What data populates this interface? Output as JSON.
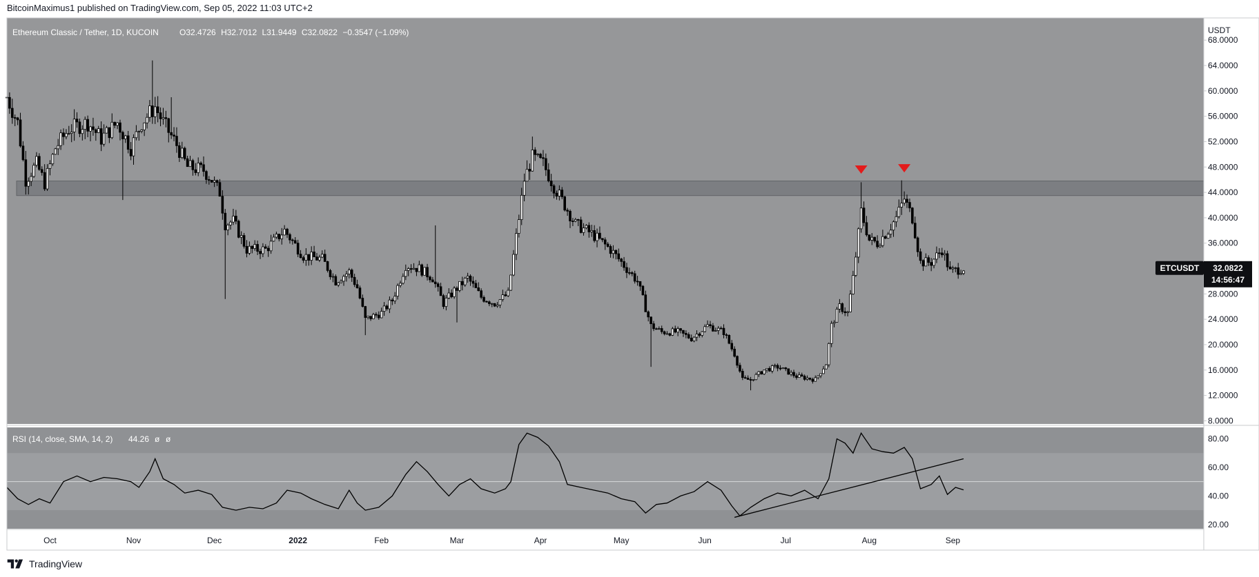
{
  "header": {
    "published": "BitcoinMaximus1 published on TradingView.com, Sep 05, 2022 11:03 UTC+2"
  },
  "main": {
    "legend": {
      "symbol": "Ethereum Classic / Tether, 1D, KUCOIN",
      "o_label": "O",
      "o": "32.4726",
      "h_label": "H",
      "h": "32.7012",
      "l_label": "L",
      "l": "31.9449",
      "c_label": "C",
      "c": "32.0822",
      "change": "−0.3547 (−1.09%)"
    },
    "currency_label": "USDT",
    "price_tag": {
      "symbol": "ETCUSDT",
      "price": "32.0822",
      "countdown": "14:56:47"
    }
  },
  "rsi": {
    "legend": "RSI (14, close, SMA, 14, 2)",
    "value": "44.26",
    "na1": "ø",
    "na2": "ø"
  },
  "footer": {
    "brand": "TradingView"
  },
  "colors": {
    "chart_bg": "#969799",
    "rsi_bg": "#8f9194",
    "rsi_band": "#9c9ea1",
    "resistance_zone": "#7a7c80",
    "candle": "#000000",
    "marker": "#e31b1b",
    "price_tag_bg": "#0e0f12"
  },
  "chart_data": [
    {
      "type": "candlestick",
      "title": "Ethereum Classic / Tether, 1D, KUCOIN",
      "ylabel": "USDT",
      "ylim": [
        7.5,
        71.5
      ],
      "y_ticks": [
        "68.0000",
        "64.0000",
        "60.0000",
        "56.0000",
        "52.0000",
        "48.0000",
        "44.0000",
        "40.0000",
        "36.0000",
        "32.0000",
        "28.0000",
        "24.0000",
        "20.0000",
        "16.0000",
        "12.0000",
        "8.0000"
      ],
      "x_ticks": [
        "Oct",
        "Nov",
        "Dec",
        "2022",
        "Feb",
        "Mar",
        "Apr",
        "May",
        "Jun",
        "Jul",
        "Aug",
        "Sep"
      ],
      "x_start_date": "2021-09-15",
      "x_end_date": "2022-09-05",
      "resistance_zone": [
        43.5,
        45.8
      ],
      "bearish_markers": [
        {
          "date": "2022-07-29",
          "price": 47.6
        },
        {
          "date": "2022-08-14",
          "price": 47.8
        }
      ],
      "close_path": [
        {
          "date": "2021-09-15",
          "price": 59.0
        },
        {
          "date": "2021-09-19",
          "price": 55.0
        },
        {
          "date": "2021-09-22",
          "price": 46.0
        },
        {
          "date": "2021-09-26",
          "price": 48.5
        },
        {
          "date": "2021-09-29",
          "price": 45.5
        },
        {
          "date": "2021-10-03",
          "price": 51.0
        },
        {
          "date": "2021-10-08",
          "price": 54.0
        },
        {
          "date": "2021-10-15",
          "price": 55.0
        },
        {
          "date": "2021-10-20",
          "price": 52.5
        },
        {
          "date": "2021-10-26",
          "price": 55.0
        },
        {
          "date": "2021-10-31",
          "price": 51.0
        },
        {
          "date": "2021-11-04",
          "price": 55.0
        },
        {
          "date": "2021-11-09",
          "price": 57.5
        },
        {
          "date": "2021-11-12",
          "price": 55.0
        },
        {
          "date": "2021-11-17",
          "price": 51.5
        },
        {
          "date": "2021-11-21",
          "price": 48.0
        },
        {
          "date": "2021-11-27",
          "price": 47.5
        },
        {
          "date": "2021-11-30",
          "price": 46.0
        },
        {
          "date": "2021-12-03",
          "price": 44.0
        },
        {
          "date": "2021-12-05",
          "price": 39.0
        },
        {
          "date": "2021-12-08",
          "price": 39.5
        },
        {
          "date": "2021-12-13",
          "price": 35.0
        },
        {
          "date": "2021-12-20",
          "price": 35.0
        },
        {
          "date": "2021-12-27",
          "price": 38.0
        },
        {
          "date": "2022-01-03",
          "price": 34.0
        },
        {
          "date": "2022-01-10",
          "price": 33.5
        },
        {
          "date": "2022-01-15",
          "price": 30.0
        },
        {
          "date": "2022-01-20",
          "price": 31.5
        },
        {
          "date": "2022-01-23",
          "price": 29.0
        },
        {
          "date": "2022-01-26",
          "price": 24.0
        },
        {
          "date": "2022-02-01",
          "price": 25.0
        },
        {
          "date": "2022-02-05",
          "price": 27.0
        },
        {
          "date": "2022-02-10",
          "price": 32.5
        },
        {
          "date": "2022-02-15",
          "price": 32.0
        },
        {
          "date": "2022-02-20",
          "price": 30.5
        },
        {
          "date": "2022-02-24",
          "price": 26.5
        },
        {
          "date": "2022-02-28",
          "price": 28.5
        },
        {
          "date": "2022-03-05",
          "price": 30.5
        },
        {
          "date": "2022-03-10",
          "price": 27.5
        },
        {
          "date": "2022-03-15",
          "price": 26.5
        },
        {
          "date": "2022-03-20",
          "price": 28.0
        },
        {
          "date": "2022-03-23",
          "price": 37.0
        },
        {
          "date": "2022-03-26",
          "price": 46.0
        },
        {
          "date": "2022-03-29",
          "price": 49.5
        },
        {
          "date": "2022-04-02",
          "price": 48.5
        },
        {
          "date": "2022-04-06",
          "price": 45.0
        },
        {
          "date": "2022-04-10",
          "price": 42.0
        },
        {
          "date": "2022-04-14",
          "price": 39.0
        },
        {
          "date": "2022-04-20",
          "price": 37.5
        },
        {
          "date": "2022-04-27",
          "price": 35.0
        },
        {
          "date": "2022-05-02",
          "price": 32.5
        },
        {
          "date": "2022-05-07",
          "price": 30.0
        },
        {
          "date": "2022-05-12",
          "price": 23.0
        },
        {
          "date": "2022-05-16",
          "price": 22.0
        },
        {
          "date": "2022-05-22",
          "price": 22.0
        },
        {
          "date": "2022-05-27",
          "price": 21.0
        },
        {
          "date": "2022-06-02",
          "price": 23.0
        },
        {
          "date": "2022-06-08",
          "price": 22.0
        },
        {
          "date": "2022-06-12",
          "price": 18.5
        },
        {
          "date": "2022-06-15",
          "price": 14.5
        },
        {
          "date": "2022-06-18",
          "price": 14.5
        },
        {
          "date": "2022-06-23",
          "price": 16.0
        },
        {
          "date": "2022-06-28",
          "price": 16.5
        },
        {
          "date": "2022-07-05",
          "price": 15.0
        },
        {
          "date": "2022-07-12",
          "price": 14.5
        },
        {
          "date": "2022-07-16",
          "price": 17.0
        },
        {
          "date": "2022-07-18",
          "price": 23.0
        },
        {
          "date": "2022-07-21",
          "price": 26.0
        },
        {
          "date": "2022-07-24",
          "price": 25.0
        },
        {
          "date": "2022-07-26",
          "price": 30.5
        },
        {
          "date": "2022-07-29",
          "price": 41.0
        },
        {
          "date": "2022-08-01",
          "price": 36.5
        },
        {
          "date": "2022-08-04",
          "price": 36.0
        },
        {
          "date": "2022-08-08",
          "price": 38.0
        },
        {
          "date": "2022-08-11",
          "price": 40.0
        },
        {
          "date": "2022-08-14",
          "price": 43.0
        },
        {
          "date": "2022-08-17",
          "price": 40.0
        },
        {
          "date": "2022-08-20",
          "price": 33.0
        },
        {
          "date": "2022-08-24",
          "price": 33.0
        },
        {
          "date": "2022-08-28",
          "price": 35.0
        },
        {
          "date": "2022-08-31",
          "price": 31.5
        },
        {
          "date": "2022-09-05",
          "price": 32.08
        }
      ],
      "wicks": [
        {
          "date": "2021-11-08",
          "high": 64.8
        },
        {
          "date": "2021-11-15",
          "high": 59.0
        },
        {
          "date": "2021-10-28",
          "low": 42.8
        },
        {
          "date": "2021-12-05",
          "low": 27.2
        },
        {
          "date": "2022-01-26",
          "low": 21.5
        },
        {
          "date": "2022-02-21",
          "high": 38.8
        },
        {
          "date": "2022-03-01",
          "low": 23.5
        },
        {
          "date": "2022-03-29",
          "high": 52.8
        },
        {
          "date": "2022-05-12",
          "low": 16.5
        },
        {
          "date": "2022-06-18",
          "low": 12.8
        },
        {
          "date": "2022-07-29",
          "high": 45.6
        },
        {
          "date": "2022-08-13",
          "high": 45.9
        }
      ]
    },
    {
      "type": "line",
      "title": "RSI (14, close, SMA, 14, 2)",
      "ylim": [
        17,
        88
      ],
      "y_ticks": [
        "80.00",
        "60.00",
        "40.00",
        "20.00"
      ],
      "band": [
        30,
        70
      ],
      "midline": 50,
      "last_value": 44.26,
      "points": [
        {
          "date": "2021-09-15",
          "value": 46
        },
        {
          "date": "2021-09-19",
          "value": 38
        },
        {
          "date": "2021-09-23",
          "value": 34
        },
        {
          "date": "2021-09-27",
          "value": 38
        },
        {
          "date": "2021-10-01",
          "value": 35
        },
        {
          "date": "2021-10-06",
          "value": 50
        },
        {
          "date": "2021-10-11",
          "value": 54
        },
        {
          "date": "2021-10-16",
          "value": 50
        },
        {
          "date": "2021-10-21",
          "value": 53
        },
        {
          "date": "2021-10-26",
          "value": 52
        },
        {
          "date": "2021-10-31",
          "value": 50
        },
        {
          "date": "2021-11-03",
          "value": 46
        },
        {
          "date": "2021-11-07",
          "value": 57
        },
        {
          "date": "2021-11-09",
          "value": 66
        },
        {
          "date": "2021-11-12",
          "value": 52
        },
        {
          "date": "2021-11-16",
          "value": 48
        },
        {
          "date": "2021-11-20",
          "value": 42
        },
        {
          "date": "2021-11-25",
          "value": 44
        },
        {
          "date": "2021-11-30",
          "value": 41
        },
        {
          "date": "2021-12-04",
          "value": 32
        },
        {
          "date": "2021-12-09",
          "value": 30
        },
        {
          "date": "2021-12-14",
          "value": 32
        },
        {
          "date": "2021-12-19",
          "value": 31
        },
        {
          "date": "2021-12-24",
          "value": 35
        },
        {
          "date": "2021-12-28",
          "value": 44
        },
        {
          "date": "2022-01-02",
          "value": 42
        },
        {
          "date": "2022-01-06",
          "value": 38
        },
        {
          "date": "2022-01-11",
          "value": 34
        },
        {
          "date": "2022-01-16",
          "value": 31
        },
        {
          "date": "2022-01-20",
          "value": 44
        },
        {
          "date": "2022-01-23",
          "value": 35
        },
        {
          "date": "2022-01-26",
          "value": 30
        },
        {
          "date": "2022-01-31",
          "value": 32
        },
        {
          "date": "2022-02-05",
          "value": 40
        },
        {
          "date": "2022-02-10",
          "value": 55
        },
        {
          "date": "2022-02-14",
          "value": 64
        },
        {
          "date": "2022-02-18",
          "value": 57
        },
        {
          "date": "2022-02-22",
          "value": 48
        },
        {
          "date": "2022-02-26",
          "value": 40
        },
        {
          "date": "2022-03-02",
          "value": 48
        },
        {
          "date": "2022-03-06",
          "value": 52
        },
        {
          "date": "2022-03-10",
          "value": 45
        },
        {
          "date": "2022-03-15",
          "value": 42
        },
        {
          "date": "2022-03-19",
          "value": 45
        },
        {
          "date": "2022-03-21",
          "value": 50
        },
        {
          "date": "2022-03-24",
          "value": 76
        },
        {
          "date": "2022-03-27",
          "value": 84
        },
        {
          "date": "2022-03-31",
          "value": 81
        },
        {
          "date": "2022-04-04",
          "value": 75
        },
        {
          "date": "2022-04-08",
          "value": 64
        },
        {
          "date": "2022-04-11",
          "value": 48
        },
        {
          "date": "2022-04-16",
          "value": 46
        },
        {
          "date": "2022-04-21",
          "value": 44
        },
        {
          "date": "2022-04-26",
          "value": 42
        },
        {
          "date": "2022-05-01",
          "value": 38
        },
        {
          "date": "2022-05-06",
          "value": 36
        },
        {
          "date": "2022-05-10",
          "value": 28
        },
        {
          "date": "2022-05-14",
          "value": 34
        },
        {
          "date": "2022-05-18",
          "value": 35
        },
        {
          "date": "2022-05-23",
          "value": 40
        },
        {
          "date": "2022-05-28",
          "value": 43
        },
        {
          "date": "2022-06-02",
          "value": 50
        },
        {
          "date": "2022-06-07",
          "value": 44
        },
        {
          "date": "2022-06-11",
          "value": 33
        },
        {
          "date": "2022-06-14",
          "value": 26
        },
        {
          "date": "2022-06-18",
          "value": 32
        },
        {
          "date": "2022-06-23",
          "value": 38
        },
        {
          "date": "2022-06-28",
          "value": 42
        },
        {
          "date": "2022-07-03",
          "value": 40
        },
        {
          "date": "2022-07-08",
          "value": 44
        },
        {
          "date": "2022-07-13",
          "value": 38
        },
        {
          "date": "2022-07-17",
          "value": 52
        },
        {
          "date": "2022-07-20",
          "value": 80
        },
        {
          "date": "2022-07-23",
          "value": 77
        },
        {
          "date": "2022-07-26",
          "value": 70
        },
        {
          "date": "2022-07-29",
          "value": 84
        },
        {
          "date": "2022-08-02",
          "value": 73
        },
        {
          "date": "2022-08-06",
          "value": 71
        },
        {
          "date": "2022-08-10",
          "value": 70
        },
        {
          "date": "2022-08-14",
          "value": 74
        },
        {
          "date": "2022-08-17",
          "value": 66
        },
        {
          "date": "2022-08-20",
          "value": 45
        },
        {
          "date": "2022-08-24",
          "value": 48
        },
        {
          "date": "2022-08-27",
          "value": 54
        },
        {
          "date": "2022-08-30",
          "value": 41
        },
        {
          "date": "2022-09-02",
          "value": 46
        },
        {
          "date": "2022-09-05",
          "value": 44.26
        }
      ],
      "trendline": [
        {
          "date": "2022-06-12",
          "value": 25
        },
        {
          "date": "2022-09-05",
          "value": 66
        }
      ]
    }
  ]
}
